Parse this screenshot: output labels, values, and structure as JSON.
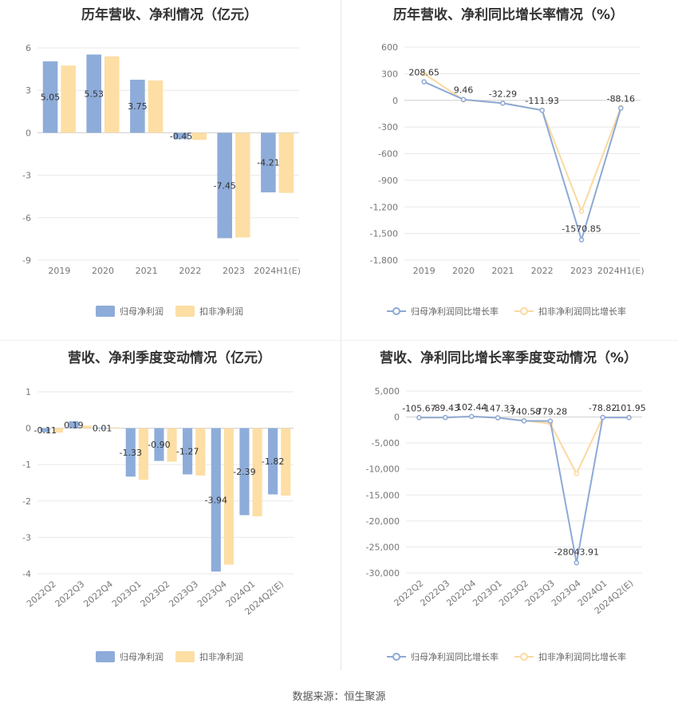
{
  "source": "数据来源：恒生聚源",
  "colors": {
    "series1": "#8eacd9",
    "series2": "#fddea4",
    "series1_line": "#8da9d6",
    "series2_line": "#fbd9a0",
    "grid": "#e8e8e8",
    "axis": "#cccccc"
  },
  "chart_data": [
    {
      "id": "annual-profit",
      "type": "bar",
      "title": "历年营收、净利情况（亿元）",
      "categories": [
        "2019",
        "2020",
        "2021",
        "2022",
        "2023",
        "2024H1(E)"
      ],
      "series": [
        {
          "name": "归母净利润",
          "values": [
            5.05,
            5.53,
            3.75,
            -0.45,
            -7.45,
            -4.21
          ],
          "show_labels": true
        },
        {
          "name": "扣非净利润",
          "values": [
            4.75,
            5.4,
            3.7,
            -0.5,
            -7.4,
            -4.25
          ],
          "show_labels": false
        }
      ],
      "ylim": [
        -9,
        6
      ],
      "yticks": [
        6,
        3,
        0,
        -3,
        -6,
        -9
      ],
      "ytick_labels": [
        "6",
        "3",
        "0",
        "-3",
        "-6",
        "-9"
      ],
      "legend": "bottom"
    },
    {
      "id": "annual-growth",
      "type": "line",
      "title": "历年营收、净利同比增长率情况（%）",
      "categories": [
        "2019",
        "2020",
        "2021",
        "2022",
        "2023",
        "2024H1(E)"
      ],
      "series": [
        {
          "name": "归母净利润同比增长率",
          "values": [
            208.65,
            9.46,
            -32.29,
            -111.93,
            -1570.85,
            -88.16
          ],
          "show_labels": true
        },
        {
          "name": "扣非净利润同比增长率",
          "values": [
            300,
            5,
            -30,
            -110,
            -1250,
            -80
          ],
          "show_labels": false
        }
      ],
      "ylim": [
        -1800,
        600
      ],
      "yticks": [
        600,
        300,
        0,
        -300,
        -600,
        -900,
        -1200,
        -1500,
        -1800
      ],
      "ytick_labels": [
        "600",
        "300",
        "0",
        "-300",
        "-600",
        "-900",
        "-1,200",
        "-1,500",
        "-1,800"
      ],
      "legend": "bottom"
    },
    {
      "id": "quarterly-profit",
      "type": "bar",
      "title": "营收、净利季度变动情况（亿元）",
      "categories": [
        "2022Q2",
        "2022Q3",
        "2022Q4",
        "2023Q1",
        "2023Q2",
        "2023Q3",
        "2023Q4",
        "2024Q1",
        "2024Q2(E)"
      ],
      "series": [
        {
          "name": "归母净利润",
          "values": [
            -0.11,
            0.19,
            0.01,
            -1.33,
            -0.9,
            -1.27,
            -3.94,
            -2.39,
            -1.82
          ],
          "show_labels": true
        },
        {
          "name": "扣非净利润",
          "values": [
            -0.12,
            0.07,
            0.02,
            -1.42,
            -0.92,
            -1.3,
            -3.75,
            -2.42,
            -1.85
          ],
          "show_labels": false
        }
      ],
      "ylim": [
        -4,
        1
      ],
      "yticks": [
        1,
        0,
        -1,
        -2,
        -3,
        -4
      ],
      "ytick_labels": [
        "1",
        "0",
        "-1",
        "-2",
        "-3",
        "-4"
      ],
      "legend": "bottom"
    },
    {
      "id": "quarterly-growth",
      "type": "line",
      "title": "营收、净利同比增长率季度变动情况（%）",
      "categories": [
        "2022Q2",
        "2022Q3",
        "2022Q4",
        "2023Q1",
        "2023Q2",
        "2023Q3",
        "2023Q4",
        "2024Q1",
        "2024Q2(E)"
      ],
      "series": [
        {
          "name": "归母净利润同比增长率",
          "values": [
            -105.67,
            -89.43,
            102.44,
            -147.33,
            -740.58,
            -779.28,
            -28043.91,
            -78.82,
            -101.95
          ],
          "show_labels": true
        },
        {
          "name": "扣非净利润同比增长率",
          "values": [
            -120,
            -95,
            90,
            -160,
            -700,
            -1250,
            -10900,
            -85,
            -105
          ],
          "show_labels": false
        }
      ],
      "ylim": [
        -30000,
        5000
      ],
      "yticks": [
        5000,
        0,
        -5000,
        -10000,
        -15000,
        -20000,
        -25000,
        -30000
      ],
      "ytick_labels": [
        "5,000",
        "0",
        "-5,000",
        "-10,000",
        "-15,000",
        "-20,000",
        "-25,000",
        "-30,000"
      ],
      "legend": "bottom"
    }
  ]
}
